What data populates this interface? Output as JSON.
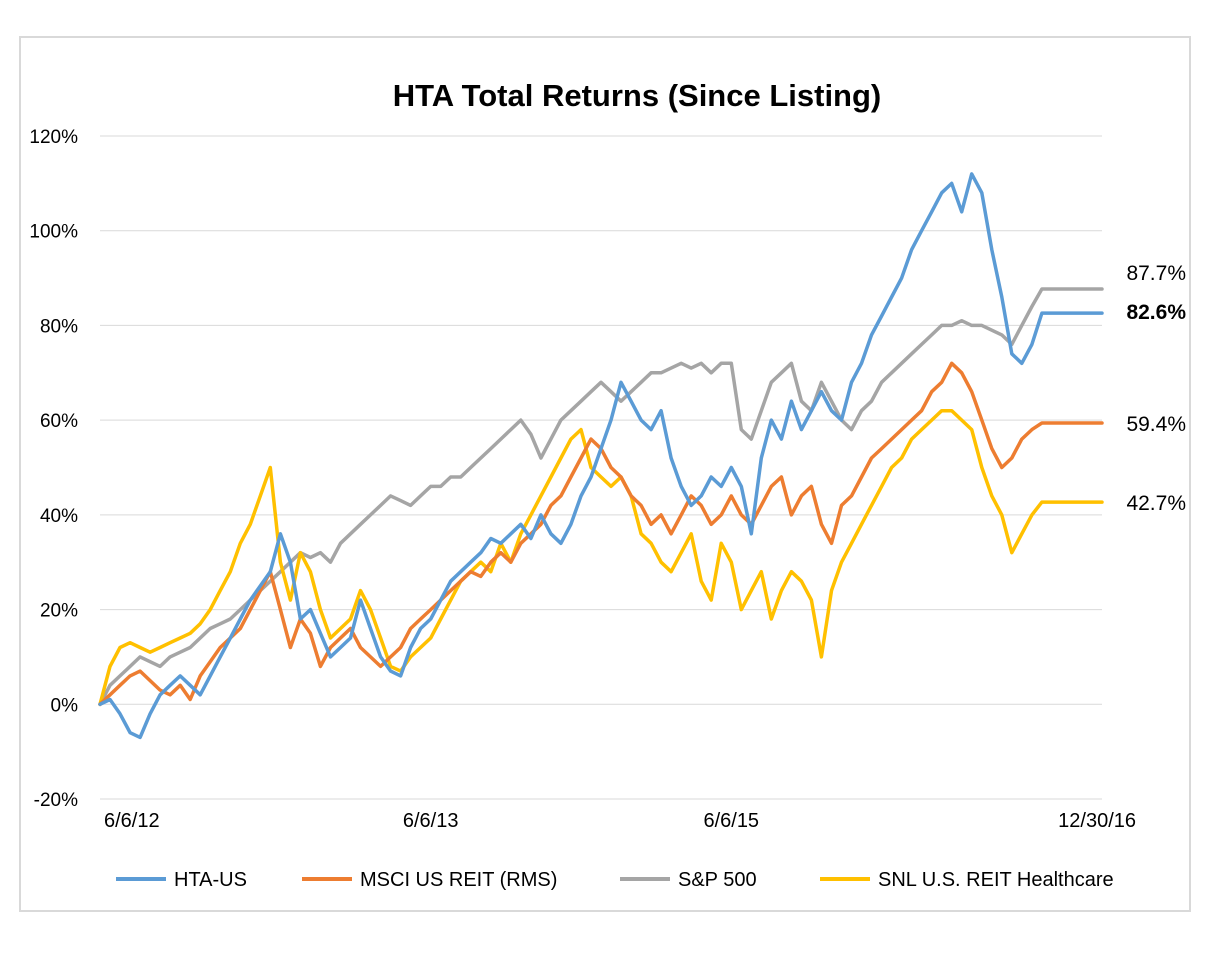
{
  "chart_data": {
    "type": "line",
    "title": "HTA Total Returns (Since Listing)",
    "xlabel": "",
    "ylabel": "",
    "ylim": [
      -20,
      120
    ],
    "yticks": [
      "120%",
      "100%",
      "80%",
      "60%",
      "40%",
      "20%",
      "0%",
      "-20%"
    ],
    "ytick_values": [
      120,
      100,
      80,
      60,
      40,
      20,
      0,
      -20
    ],
    "x_range": [
      0,
      1
    ],
    "xticks": [
      {
        "label": "6/6/12",
        "pos": 0.0
      },
      {
        "label": "6/6/13",
        "pos": 0.33
      },
      {
        "label": "6/6/15",
        "pos": 0.63
      },
      {
        "label": "12/30/16",
        "pos": 1.0
      }
    ],
    "grid": true,
    "legend": "bottom",
    "series": [
      {
        "name": "HTA-US",
        "color": "#5b9bd5",
        "end_label": "82.6%",
        "end_label_bold": true,
        "end_value": 82.6,
        "x": [
          0,
          0.01,
          0.02,
          0.03,
          0.04,
          0.05,
          0.06,
          0.07,
          0.08,
          0.09,
          0.1,
          0.11,
          0.12,
          0.13,
          0.14,
          0.15,
          0.16,
          0.17,
          0.18,
          0.19,
          0.2,
          0.21,
          0.22,
          0.23,
          0.24,
          0.25,
          0.26,
          0.27,
          0.28,
          0.29,
          0.3,
          0.31,
          0.32,
          0.33,
          0.34,
          0.35,
          0.36,
          0.37,
          0.38,
          0.39,
          0.4,
          0.41,
          0.42,
          0.43,
          0.44,
          0.45,
          0.46,
          0.47,
          0.48,
          0.49,
          0.5,
          0.51,
          0.52,
          0.53,
          0.54,
          0.55,
          0.56,
          0.57,
          0.58,
          0.59,
          0.6,
          0.61,
          0.62,
          0.63,
          0.64,
          0.65,
          0.66,
          0.67,
          0.68,
          0.69,
          0.7,
          0.71,
          0.72,
          0.73,
          0.74,
          0.75,
          0.76,
          0.77,
          0.78,
          0.79,
          0.8,
          0.81,
          0.82,
          0.83,
          0.84,
          0.85,
          0.86,
          0.87,
          0.88,
          0.89,
          0.9,
          0.91,
          0.92,
          0.93,
          0.94,
          0.95,
          0.96,
          0.97,
          0.98,
          0.99,
          1.0
        ],
        "y": [
          0,
          1,
          -2,
          -6,
          -7,
          -2,
          2,
          4,
          6,
          4,
          2,
          6,
          10,
          14,
          18,
          22,
          25,
          28,
          36,
          30,
          18,
          20,
          15,
          10,
          12,
          14,
          22,
          16,
          10,
          7,
          6,
          12,
          16,
          18,
          22,
          26,
          28,
          30,
          32,
          35,
          34,
          36,
          38,
          35,
          40,
          36,
          34,
          38,
          44,
          48,
          54,
          60,
          68,
          64,
          60,
          58,
          62,
          52,
          46,
          42,
          44,
          48,
          46,
          50,
          46,
          36,
          52,
          60,
          56,
          64,
          58,
          62,
          66,
          62,
          60,
          68,
          72,
          78,
          82,
          86,
          90,
          96,
          100,
          104,
          108,
          110,
          104,
          112,
          108,
          96,
          86,
          74,
          72,
          76,
          82.6,
          82.6,
          82.6,
          82.6,
          82.6,
          82.6,
          82.6
        ]
      },
      {
        "name": "MSCI US REIT (RMS)",
        "color": "#ed7d31",
        "end_label": "59.4%",
        "end_label_bold": false,
        "end_value": 59.4,
        "x": [
          0,
          0.01,
          0.02,
          0.03,
          0.04,
          0.05,
          0.06,
          0.07,
          0.08,
          0.09,
          0.1,
          0.11,
          0.12,
          0.13,
          0.14,
          0.15,
          0.16,
          0.17,
          0.18,
          0.19,
          0.2,
          0.21,
          0.22,
          0.23,
          0.24,
          0.25,
          0.26,
          0.27,
          0.28,
          0.29,
          0.3,
          0.31,
          0.32,
          0.33,
          0.34,
          0.35,
          0.36,
          0.37,
          0.38,
          0.39,
          0.4,
          0.41,
          0.42,
          0.43,
          0.44,
          0.45,
          0.46,
          0.47,
          0.48,
          0.49,
          0.5,
          0.51,
          0.52,
          0.53,
          0.54,
          0.55,
          0.56,
          0.57,
          0.58,
          0.59,
          0.6,
          0.61,
          0.62,
          0.63,
          0.64,
          0.65,
          0.66,
          0.67,
          0.68,
          0.69,
          0.7,
          0.71,
          0.72,
          0.73,
          0.74,
          0.75,
          0.76,
          0.77,
          0.78,
          0.79,
          0.8,
          0.81,
          0.82,
          0.83,
          0.84,
          0.85,
          0.86,
          0.87,
          0.88,
          0.89,
          0.9,
          0.91,
          0.92,
          0.93,
          0.94,
          0.95,
          0.96,
          0.97,
          0.98,
          0.99,
          1.0
        ],
        "y": [
          0,
          2,
          4,
          6,
          7,
          5,
          3,
          2,
          4,
          1,
          6,
          9,
          12,
          14,
          16,
          20,
          24,
          28,
          20,
          12,
          18,
          15,
          8,
          12,
          14,
          16,
          12,
          10,
          8,
          10,
          12,
          16,
          18,
          20,
          22,
          24,
          26,
          28,
          27,
          30,
          32,
          30,
          34,
          36,
          38,
          42,
          44,
          48,
          52,
          56,
          54,
          50,
          48,
          44,
          42,
          38,
          40,
          36,
          40,
          44,
          42,
          38,
          40,
          44,
          40,
          38,
          42,
          46,
          48,
          40,
          44,
          46,
          38,
          34,
          42,
          44,
          48,
          52,
          54,
          56,
          58,
          60,
          62,
          66,
          68,
          72,
          70,
          66,
          60,
          54,
          50,
          52,
          56,
          58,
          59.4,
          59.4,
          59.4,
          59.4,
          59.4,
          59.4,
          59.4
        ]
      },
      {
        "name": "S&P 500",
        "color": "#a5a5a5",
        "end_label": "87.7%",
        "end_label_bold": false,
        "end_value": 87.7,
        "x": [
          0,
          0.01,
          0.02,
          0.03,
          0.04,
          0.05,
          0.06,
          0.07,
          0.08,
          0.09,
          0.1,
          0.11,
          0.12,
          0.13,
          0.14,
          0.15,
          0.16,
          0.17,
          0.18,
          0.19,
          0.2,
          0.21,
          0.22,
          0.23,
          0.24,
          0.25,
          0.26,
          0.27,
          0.28,
          0.29,
          0.3,
          0.31,
          0.32,
          0.33,
          0.34,
          0.35,
          0.36,
          0.37,
          0.38,
          0.39,
          0.4,
          0.41,
          0.42,
          0.43,
          0.44,
          0.45,
          0.46,
          0.47,
          0.48,
          0.49,
          0.5,
          0.51,
          0.52,
          0.53,
          0.54,
          0.55,
          0.56,
          0.57,
          0.58,
          0.59,
          0.6,
          0.61,
          0.62,
          0.63,
          0.64,
          0.65,
          0.66,
          0.67,
          0.68,
          0.69,
          0.7,
          0.71,
          0.72,
          0.73,
          0.74,
          0.75,
          0.76,
          0.77,
          0.78,
          0.79,
          0.8,
          0.81,
          0.82,
          0.83,
          0.84,
          0.85,
          0.86,
          0.87,
          0.88,
          0.89,
          0.9,
          0.91,
          0.92,
          0.93,
          0.94,
          0.95,
          0.96,
          0.97,
          0.98,
          0.99,
          1.0
        ],
        "y": [
          0,
          4,
          6,
          8,
          10,
          9,
          8,
          10,
          11,
          12,
          14,
          16,
          17,
          18,
          20,
          22,
          24,
          26,
          28,
          30,
          32,
          31,
          32,
          30,
          34,
          36,
          38,
          40,
          42,
          44,
          43,
          42,
          44,
          46,
          46,
          48,
          48,
          50,
          52,
          54,
          56,
          58,
          60,
          57,
          52,
          56,
          60,
          62,
          64,
          66,
          68,
          66,
          64,
          66,
          68,
          70,
          70,
          71,
          72,
          71,
          72,
          70,
          72,
          72,
          58,
          56,
          62,
          68,
          70,
          72,
          64,
          62,
          68,
          64,
          60,
          58,
          62,
          64,
          68,
          70,
          72,
          74,
          76,
          78,
          80,
          80,
          81,
          80,
          80,
          79,
          78,
          76,
          80,
          84,
          87.7,
          87.7,
          87.7,
          87.7,
          87.7,
          87.7,
          87.7
        ]
      },
      {
        "name": "SNL U.S. REIT Healthcare",
        "color": "#ffc000",
        "end_label": "42.7%",
        "end_label_bold": false,
        "end_value": 42.7,
        "x": [
          0,
          0.01,
          0.02,
          0.03,
          0.04,
          0.05,
          0.06,
          0.07,
          0.08,
          0.09,
          0.1,
          0.11,
          0.12,
          0.13,
          0.14,
          0.15,
          0.16,
          0.17,
          0.18,
          0.19,
          0.2,
          0.21,
          0.22,
          0.23,
          0.24,
          0.25,
          0.26,
          0.27,
          0.28,
          0.29,
          0.3,
          0.31,
          0.32,
          0.33,
          0.34,
          0.35,
          0.36,
          0.37,
          0.38,
          0.39,
          0.4,
          0.41,
          0.42,
          0.43,
          0.44,
          0.45,
          0.46,
          0.47,
          0.48,
          0.49,
          0.5,
          0.51,
          0.52,
          0.53,
          0.54,
          0.55,
          0.56,
          0.57,
          0.58,
          0.59,
          0.6,
          0.61,
          0.62,
          0.63,
          0.64,
          0.65,
          0.66,
          0.67,
          0.68,
          0.69,
          0.7,
          0.71,
          0.72,
          0.73,
          0.74,
          0.75,
          0.76,
          0.77,
          0.78,
          0.79,
          0.8,
          0.81,
          0.82,
          0.83,
          0.84,
          0.85,
          0.86,
          0.87,
          0.88,
          0.89,
          0.9,
          0.91,
          0.92,
          0.93,
          0.94,
          0.95,
          0.96,
          0.97,
          0.98,
          0.99,
          1.0
        ],
        "y": [
          0,
          8,
          12,
          13,
          12,
          11,
          12,
          13,
          14,
          15,
          17,
          20,
          24,
          28,
          34,
          38,
          44,
          50,
          30,
          22,
          32,
          28,
          20,
          14,
          16,
          18,
          24,
          20,
          14,
          8,
          7,
          10,
          12,
          14,
          18,
          22,
          26,
          28,
          30,
          28,
          34,
          30,
          36,
          40,
          44,
          48,
          52,
          56,
          58,
          50,
          48,
          46,
          48,
          44,
          36,
          34,
          30,
          28,
          32,
          36,
          26,
          22,
          34,
          30,
          20,
          24,
          28,
          18,
          24,
          28,
          26,
          22,
          10,
          24,
          30,
          34,
          38,
          42,
          46,
          50,
          52,
          56,
          58,
          60,
          62,
          62,
          60,
          58,
          50,
          44,
          40,
          32,
          36,
          40,
          42.7,
          42.7,
          42.7,
          42.7,
          42.7,
          42.7,
          42.7
        ]
      }
    ]
  }
}
